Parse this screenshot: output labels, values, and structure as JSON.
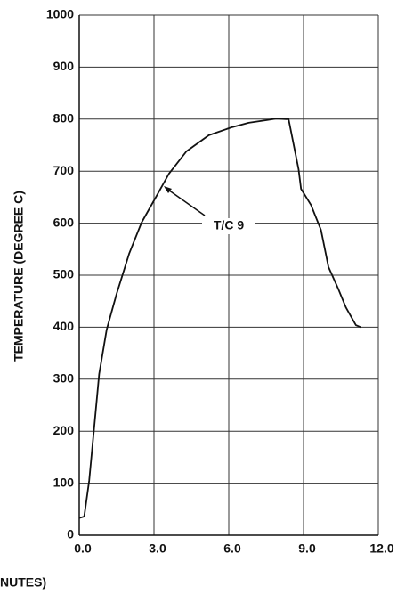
{
  "chart_data": {
    "type": "line",
    "y_label": "TEMPERATURE (DEGREE C)",
    "x_label": "NUTES)",
    "annotation": "T/C 9",
    "color": "#111111",
    "grid": true,
    "xlim": [
      0,
      12
    ],
    "xticks": [
      {
        "value": 0,
        "label": "0.0"
      },
      {
        "value": 3,
        "label": "3.0"
      },
      {
        "value": 6,
        "label": "6.0"
      },
      {
        "value": 9,
        "label": "9.0"
      },
      {
        "value": 12,
        "label": "12.0"
      }
    ],
    "ylim": [
      0,
      1000
    ],
    "yticks": [
      0,
      100,
      200,
      300,
      400,
      500,
      600,
      700,
      800,
      900,
      1000
    ],
    "x": [
      0,
      0.2,
      0.4,
      0.6,
      0.8,
      1.1,
      1.5,
      2.0,
      2.5,
      3.1,
      3.6,
      4.3,
      5.2,
      6.1,
      6.8,
      7.5,
      7.9,
      8.3,
      8.4,
      8.8,
      8.9,
      9.3,
      9.7,
      10.0,
      10.4,
      10.7,
      11.1,
      11.3
    ],
    "values": [
      33,
      36,
      105,
      207,
      310,
      395,
      464,
      541,
      601,
      652,
      695,
      738,
      769,
      784,
      793,
      798,
      801,
      800,
      800,
      704,
      666,
      635,
      587,
      516,
      473,
      438,
      404,
      400
    ]
  }
}
